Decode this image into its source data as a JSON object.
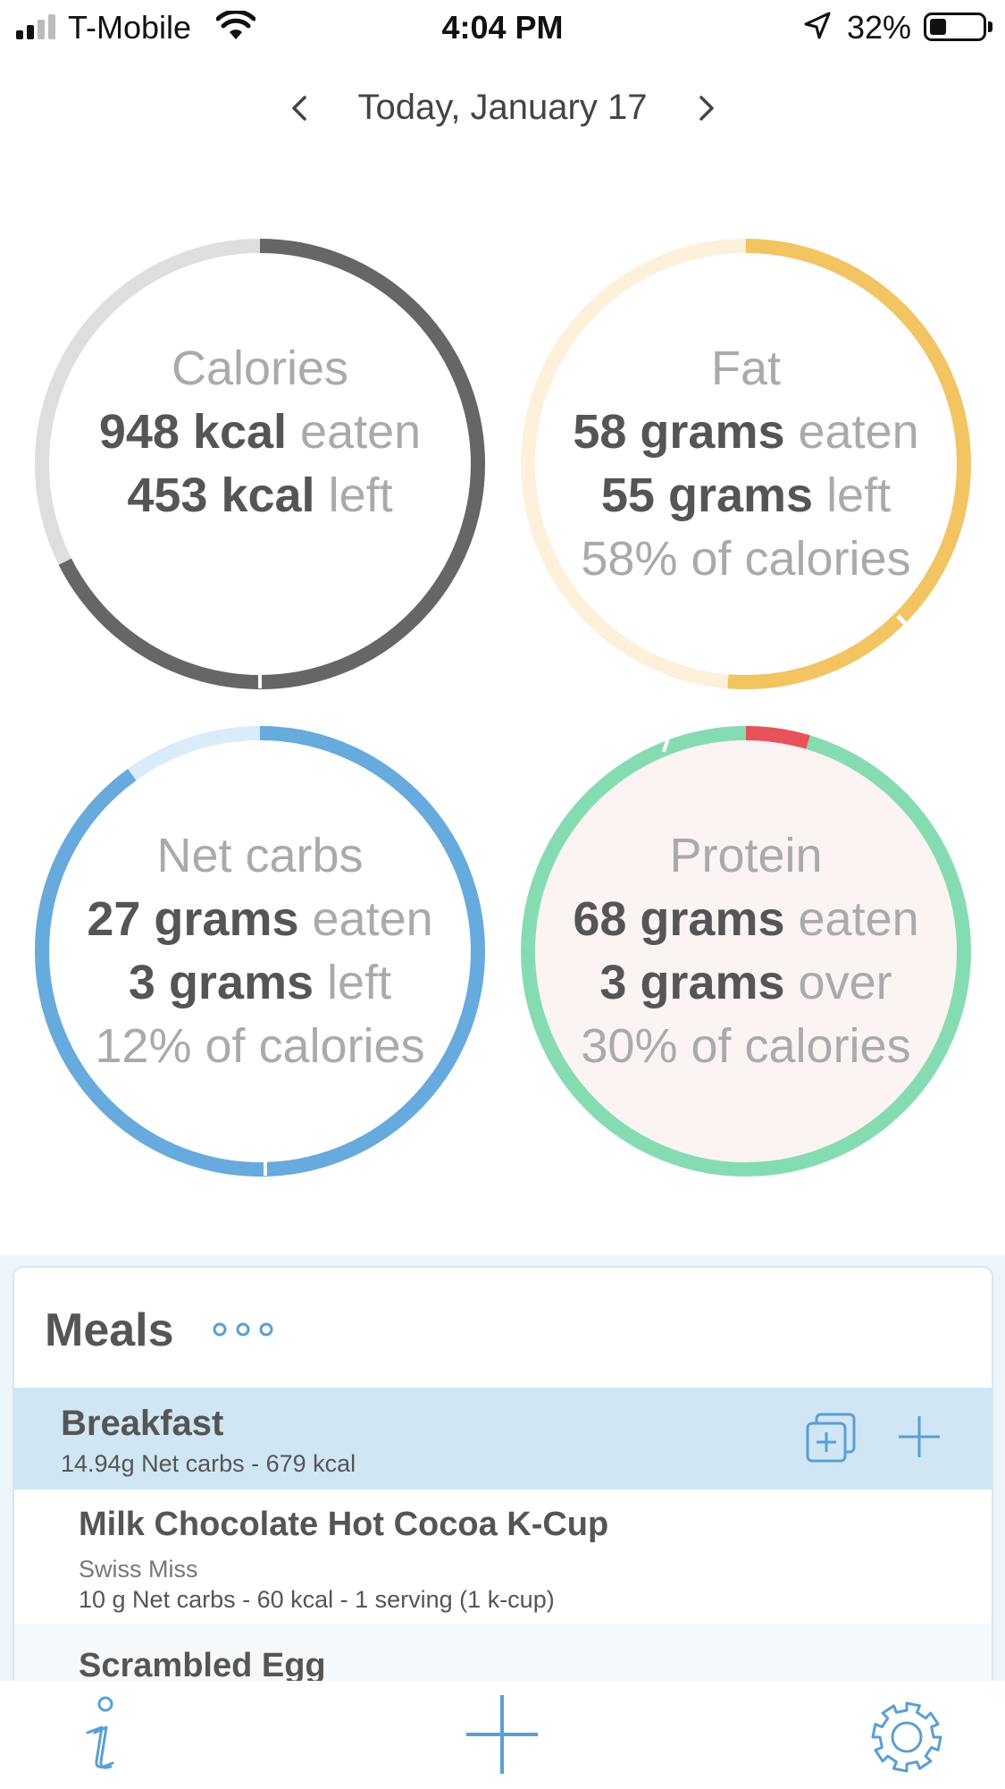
{
  "status_bar": {
    "carrier": "T-Mobile",
    "time": "4:04 PM",
    "battery_percent": "32%",
    "battery_level": 0.32
  },
  "date_nav": {
    "label": "Today, January 17",
    "prev_icon": "chevron-left-icon",
    "next_icon": "chevron-right-icon"
  },
  "rings": {
    "calories": {
      "title": "Calories",
      "eaten_value": "948 kcal",
      "eaten_word": "eaten",
      "left_value": "453 kcal",
      "left_word": "left",
      "progress": 0.676,
      "colors": {
        "track": "#dedede",
        "fill": "#666666"
      }
    },
    "fat": {
      "title": "Fat",
      "eaten_value": "58 grams",
      "eaten_word": "eaten",
      "left_value": "55 grams",
      "left_word": "left",
      "pct": "58% of calories",
      "progress": 0.513,
      "colors": {
        "track": "#fdf1dc",
        "fill": "#f2c462"
      }
    },
    "net_carbs": {
      "title": "Net carbs",
      "eaten_value": "27 grams",
      "eaten_word": "eaten",
      "left_value": "3 grams",
      "left_word": "left",
      "pct": "12% of calories",
      "progress": 0.9,
      "colors": {
        "track": "#dcebf8",
        "fill": "#66aade"
      }
    },
    "protein": {
      "title": "Protein",
      "eaten_value": "68 grams",
      "eaten_word": "eaten",
      "left_value": "3 grams",
      "left_word": "over",
      "pct": "30% of calories",
      "progress": 1.046,
      "colors": {
        "fill": "#86dcb2",
        "over": "#e8525a",
        "bg": "#fcf3f3"
      }
    }
  },
  "meals": {
    "title": "Meals",
    "more_icon": "more-dots-icon",
    "breakfast": {
      "name": "Breakfast",
      "summary": "14.94g Net carbs - 679 kcal",
      "copy_icon": "copy-add-icon",
      "add_icon": "plus-icon"
    },
    "items": [
      {
        "name": "Milk Chocolate Hot Cocoa K-Cup",
        "brand": "Swiss Miss",
        "detail": "10 g Net carbs - 60 kcal - 1 serving (1 k-cup)"
      },
      {
        "name": "Scrambled Egg"
      }
    ]
  },
  "tab_bar": {
    "info_icon": "info-icon",
    "add_icon": "plus-icon",
    "settings_icon": "gear-icon"
  },
  "colors": {
    "accent": "#5a9fd4",
    "text": "#555555",
    "muted": "#aaaaaa"
  }
}
